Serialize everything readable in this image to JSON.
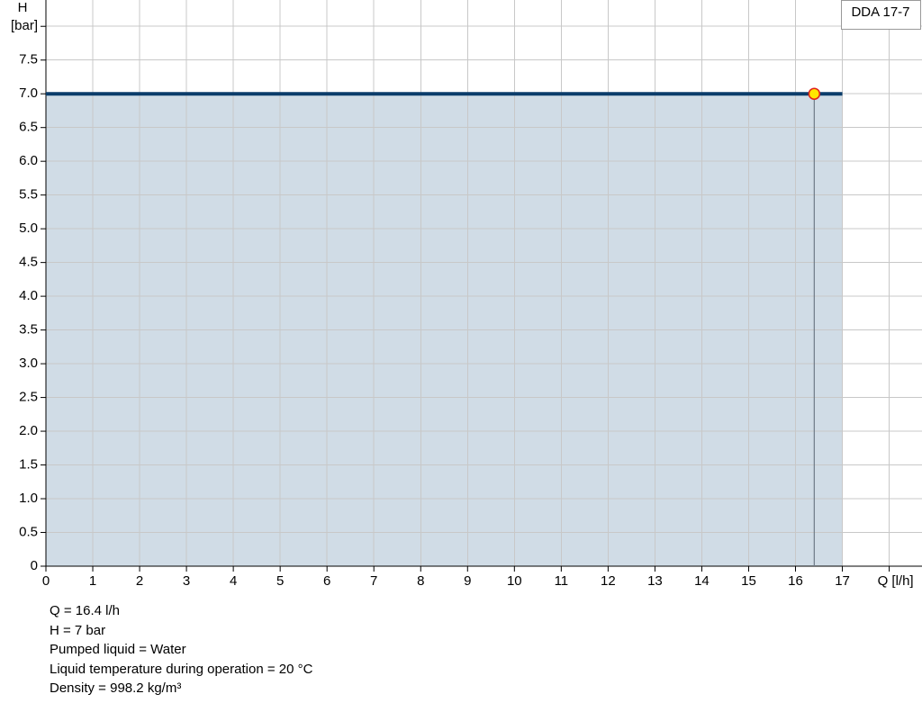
{
  "chart_data": {
    "type": "line",
    "legend": "DDA 17-7",
    "y_label": "H",
    "x": [
      0,
      17
    ],
    "series": [
      {
        "name": "DDA 17-7",
        "color": "#0b3d6b",
        "fill": "#d0dce6",
        "values": [
          7,
          7
        ]
      }
    ],
    "duty_point": {
      "x": 16.4,
      "y": 7,
      "color": "#ffe600",
      "stroke": "#e0201b"
    },
    "xlim": [
      0,
      18.7
    ],
    "ylim": [
      0,
      8.39
    ],
    "xticks": [
      0,
      1,
      2,
      3,
      4,
      5,
      6,
      7,
      8,
      9,
      10,
      11,
      12,
      13,
      14,
      15,
      16,
      17,
      {
        "value": 18,
        "label": "Q [l/h]"
      }
    ],
    "yticks": [
      0,
      0.5,
      {
        "value": 1,
        "label": "1.0"
      },
      1.5,
      {
        "value": 2,
        "label": "2.0"
      },
      2.5,
      {
        "value": 3,
        "label": "3.0"
      },
      3.5,
      {
        "value": 4,
        "label": "4.0"
      },
      4.5,
      {
        "value": 5,
        "label": "5.0"
      },
      5.5,
      {
        "value": 6,
        "label": "6.0"
      },
      6.5,
      {
        "value": 7,
        "label": "7.0"
      },
      7.5,
      {
        "value": 8,
        "label": "[bar]"
      }
    ],
    "grid": true
  },
  "info": [
    "Q = 16.4 l/h",
    "H = 7 bar",
    "Pumped liquid = Water",
    "Liquid temperature during operation = 20 °C",
    "Density = 998.2 kg/m³"
  ]
}
